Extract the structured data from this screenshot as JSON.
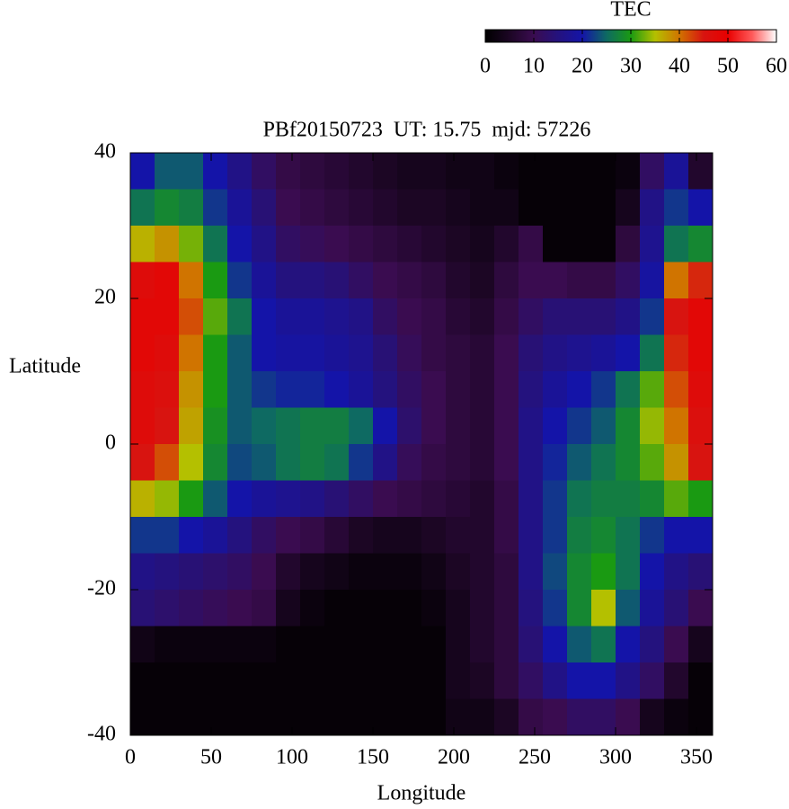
{
  "chart_data": {
    "type": "heatmap",
    "title": "PBf20150723  UT: 15.75  mjd: 57226",
    "xlabel": "Longitude",
    "ylabel": "Latitude",
    "xlim": [
      0,
      360
    ],
    "xticks": [
      0,
      50,
      100,
      150,
      200,
      250,
      300,
      350
    ],
    "ylim": [
      -40,
      40
    ],
    "yticks": [
      -40,
      -20,
      0,
      20,
      40
    ],
    "x": [
      7.5,
      22.5,
      37.5,
      52.5,
      67.5,
      82.5,
      97.5,
      112.5,
      127.5,
      142.5,
      157.5,
      172.5,
      187.5,
      202.5,
      217.5,
      232.5,
      247.5,
      262.5,
      277.5,
      292.5,
      307.5,
      322.5,
      337.5,
      352.5
    ],
    "y": [
      37.5,
      32.5,
      27.5,
      22.5,
      17.5,
      12.5,
      7.5,
      2.5,
      -2.5,
      -7.5,
      -12.5,
      -17.5,
      -22.5,
      -27.5,
      -32.5,
      -37.5
    ],
    "values": [
      [
        20,
        24,
        24,
        20,
        16,
        12,
        9,
        8,
        7,
        6,
        5,
        4,
        4,
        3,
        3,
        2,
        1,
        1,
        1,
        1,
        2,
        12,
        18,
        6
      ],
      [
        26,
        28,
        27,
        22,
        18,
        14,
        10,
        9,
        8,
        7,
        6,
        5,
        5,
        4,
        3,
        3,
        1,
        1,
        1,
        1,
        4,
        16,
        22,
        20
      ],
      [
        36,
        38,
        33,
        26,
        20,
        16,
        12,
        11,
        10,
        9,
        8,
        7,
        6,
        5,
        4,
        6,
        9,
        1,
        1,
        1,
        8,
        17,
        26,
        28
      ],
      [
        47,
        48,
        40,
        30,
        22,
        18,
        15,
        15,
        14,
        12,
        10,
        9,
        8,
        6,
        5,
        8,
        10,
        10,
        9,
        9,
        12,
        19,
        40,
        44
      ],
      [
        48,
        48,
        42,
        32,
        26,
        20,
        18,
        18,
        17,
        16,
        12,
        10,
        9,
        7,
        6,
        9,
        12,
        14,
        14,
        14,
        16,
        22,
        45,
        48
      ],
      [
        48,
        47,
        40,
        30,
        24,
        20,
        19,
        19,
        18,
        17,
        14,
        11,
        9,
        8,
        7,
        10,
        14,
        16,
        17,
        18,
        20,
        26,
        44,
        48
      ],
      [
        47,
        46,
        38,
        30,
        24,
        22,
        21,
        21,
        20,
        18,
        15,
        12,
        10,
        8,
        7,
        10,
        15,
        18,
        20,
        22,
        26,
        32,
        42,
        47
      ],
      [
        47,
        45,
        37,
        29,
        24,
        25,
        26,
        27,
        27,
        25,
        20,
        13,
        10,
        8,
        7,
        10,
        16,
        20,
        22,
        24,
        28,
        34,
        40,
        46
      ],
      [
        45,
        42,
        35,
        28,
        23,
        24,
        26,
        27,
        26,
        22,
        16,
        11,
        9,
        8,
        7,
        10,
        16,
        21,
        24,
        26,
        28,
        32,
        38,
        45
      ],
      [
        36,
        34,
        30,
        24,
        20,
        18,
        17,
        16,
        14,
        12,
        10,
        9,
        8,
        7,
        6,
        9,
        16,
        22,
        26,
        27,
        27,
        28,
        32,
        30
      ],
      [
        22,
        22,
        20,
        18,
        15,
        12,
        10,
        9,
        7,
        5,
        4,
        4,
        5,
        6,
        6,
        9,
        16,
        22,
        27,
        28,
        26,
        22,
        20,
        20
      ],
      [
        16,
        15,
        14,
        13,
        12,
        10,
        6,
        4,
        3,
        2,
        2,
        2,
        3,
        5,
        6,
        8,
        16,
        23,
        28,
        30,
        26,
        20,
        16,
        14
      ],
      [
        14,
        13,
        12,
        11,
        10,
        9,
        4,
        2,
        1,
        1,
        1,
        1,
        2,
        4,
        6,
        8,
        15,
        22,
        28,
        35,
        24,
        18,
        14,
        10
      ],
      [
        3,
        2,
        2,
        2,
        2,
        2,
        1,
        1,
        1,
        1,
        1,
        1,
        1,
        4,
        6,
        8,
        14,
        20,
        24,
        26,
        20,
        15,
        10,
        4
      ],
      [
        1,
        1,
        1,
        1,
        1,
        1,
        1,
        1,
        1,
        1,
        1,
        1,
        1,
        4,
        5,
        8,
        12,
        16,
        20,
        20,
        16,
        12,
        6,
        1
      ],
      [
        1,
        1,
        1,
        1,
        1,
        1,
        1,
        1,
        1,
        1,
        1,
        1,
        1,
        3,
        3,
        5,
        9,
        10,
        12,
        12,
        10,
        4,
        2,
        1
      ]
    ],
    "colorbar": {
      "label": "TEC",
      "lim": [
        0,
        60
      ],
      "ticks": [
        0,
        10,
        20,
        30,
        40,
        50,
        60
      ]
    },
    "colormap": [
      "#000000",
      "#1c0624",
      "#3a0c50",
      "#24127e",
      "#1414a8",
      "#0e6a62",
      "#1a9a12",
      "#b4c000",
      "#d07400",
      "#d81410",
      "#e80000",
      "#ff5a5a",
      "#ffffff"
    ]
  }
}
